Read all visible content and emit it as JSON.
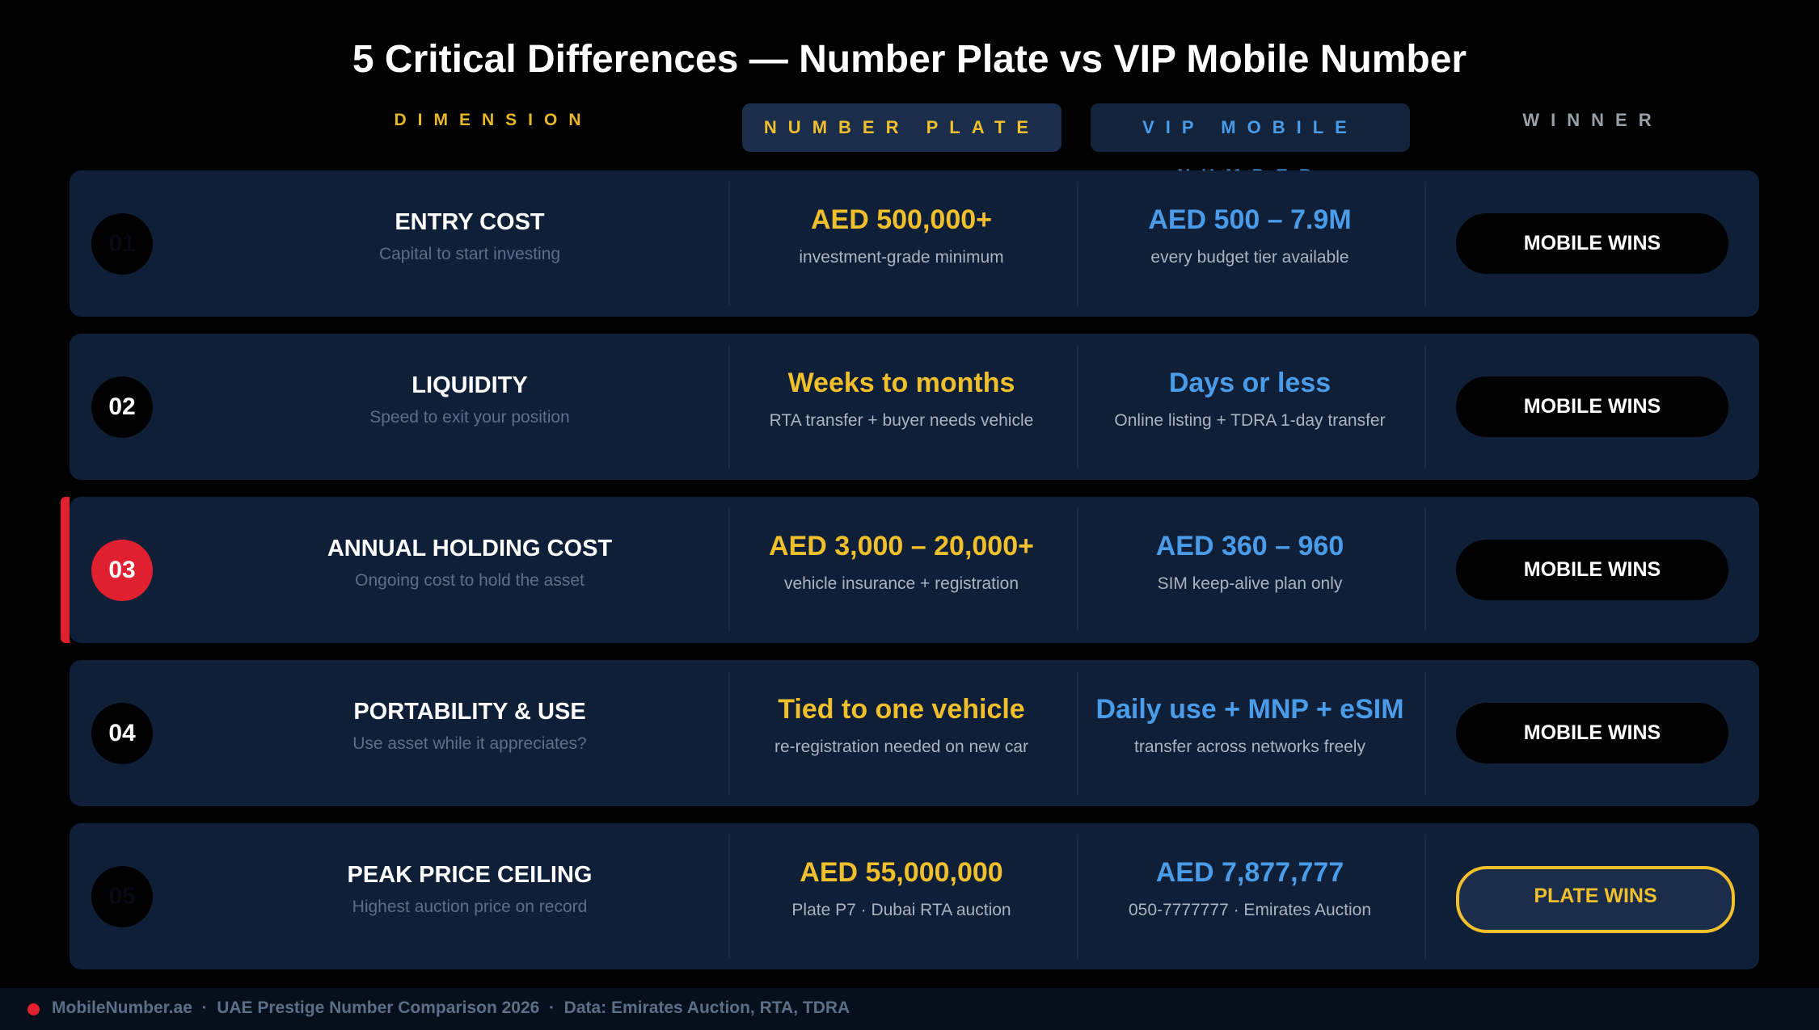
{
  "title": "5 Critical Differences — Number Plate vs VIP Mobile Number",
  "headers": [
    "DIMENSION",
    "NUMBER PLATE",
    "VIP MOBILE NUMBER",
    "WINNER"
  ],
  "rows": [
    {
      "number": "01",
      "dimension": "ENTRY COST",
      "subtitle": "Capital to start investing",
      "plate": "AED 500,000+",
      "plate_note": "investment-grade minimum",
      "mobile": "AED 500 – 7.9M",
      "mobile_note": "every budget tier available",
      "winner": "MOBILE WINS"
    },
    {
      "number": "02",
      "dimension": "LIQUIDITY",
      "subtitle": "Speed to exit your position",
      "plate": "Weeks to months",
      "plate_note": "RTA transfer + buyer needs vehicle",
      "mobile": "Days or less",
      "mobile_note": "Online listing + TDRA 1-day transfer",
      "winner": "MOBILE WINS"
    },
    {
      "number": "03",
      "dimension": "ANNUAL HOLDING COST",
      "subtitle": "Ongoing cost to hold the asset",
      "plate": "AED 3,000 – 20,000+",
      "plate_note": "vehicle insurance + registration",
      "mobile": "AED 360 – 960",
      "mobile_note": "SIM keep-alive plan only",
      "winner": "MOBILE WINS"
    },
    {
      "number": "04",
      "dimension": "PORTABILITY & USE",
      "subtitle": "Use asset while it appreciates?",
      "plate": "Tied to one vehicle",
      "plate_note": "re-registration needed on new car",
      "mobile": "Daily use + MNP + eSIM",
      "mobile_note": "transfer across networks freely",
      "winner": "MOBILE WINS"
    },
    {
      "number": "05",
      "dimension": "PEAK PRICE CEILING",
      "subtitle": "Highest auction price on record",
      "plate": "AED 55,000,000",
      "plate_note": "Plate P7  ·  Dubai RTA auction",
      "mobile": "AED 7,877,777",
      "mobile_note": "050-7777777  ·  Emirates Auction",
      "winner": "PLATE WINS"
    }
  ],
  "footer": "MobileNumber.ae  ·  UAE Prestige Number Comparison 2026  ·  Data: Emirates Auction, RTA, TDRA"
}
